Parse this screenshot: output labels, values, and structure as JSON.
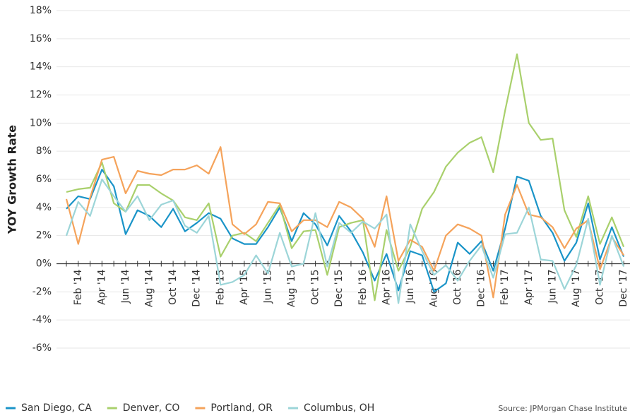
{
  "chart_data": {
    "type": "line",
    "y_label": "YOY Growth Rate",
    "source": "Source:  JPMorgan Chase Institute",
    "categories": [
      null,
      "Feb '14",
      null,
      "Apr '14",
      null,
      "Jun '14",
      null,
      "Aug '14",
      null,
      "Oct '14",
      null,
      "Dec '14",
      null,
      "Feb '15",
      null,
      "Apr '15",
      null,
      "Jun '15",
      null,
      "Aug '15",
      null,
      "Oct '15",
      null,
      "Dec '15",
      null,
      "Feb '16",
      null,
      "Apr '16",
      null,
      "Jun '16",
      null,
      "Aug '16",
      null,
      "Oct '16",
      null,
      "Dec '16",
      null,
      "Feb '17",
      null,
      "Apr '17",
      null,
      "Jun '17",
      null,
      "Aug '17",
      null,
      "Oct '17",
      null,
      "Dec '17"
    ],
    "series": [
      {
        "name": "San Diego, CA",
        "color": "#1a94c8",
        "values": [
          3.9,
          4.8,
          4.6,
          6.7,
          5.5,
          2.1,
          3.8,
          3.4,
          2.6,
          3.9,
          2.3,
          2.9,
          3.6,
          3.2,
          1.8,
          1.4,
          1.4,
          2.6,
          4.0,
          1.6,
          3.6,
          2.8,
          1.3,
          3.4,
          2.3,
          0.8,
          -1.2,
          0.7,
          -1.9,
          0.9,
          0.6,
          -2.0,
          -1.4,
          1.5,
          0.7,
          1.6,
          -0.5,
          2.5,
          6.2,
          5.9,
          3.4,
          2.2,
          0.2,
          1.5,
          4.3,
          0.3,
          2.6,
          0.5
        ]
      },
      {
        "name": "Denver, CO",
        "color": "#a9d06c",
        "values": [
          5.1,
          5.3,
          5.4,
          7.2,
          4.3,
          3.7,
          5.6,
          5.6,
          5.0,
          4.5,
          3.3,
          3.1,
          4.3,
          0.5,
          2.0,
          2.2,
          1.6,
          2.9,
          4.2,
          1.1,
          2.3,
          2.4,
          -0.8,
          2.6,
          2.9,
          3.1,
          -2.6,
          2.4,
          -0.5,
          1.2,
          3.9,
          5.1,
          6.9,
          7.9,
          8.6,
          9.0,
          6.5,
          10.9,
          14.9,
          10.0,
          8.8,
          8.9,
          3.8,
          1.9,
          4.8,
          1.4,
          3.3,
          1.2
        ]
      },
      {
        "name": "Portland, OR",
        "color": "#f5a35b",
        "values": [
          4.6,
          1.4,
          4.7,
          7.4,
          7.6,
          5.0,
          6.6,
          6.4,
          6.3,
          6.7,
          6.7,
          7.0,
          6.4,
          8.3,
          2.8,
          2.1,
          2.8,
          4.4,
          4.3,
          2.3,
          3.1,
          3.1,
          2.6,
          4.4,
          4.0,
          3.2,
          1.2,
          4.8,
          0.2,
          1.7,
          1.2,
          -0.5,
          2.0,
          2.8,
          2.5,
          2.0,
          -2.4,
          3.5,
          5.6,
          3.5,
          3.3,
          2.6,
          1.1,
          2.5,
          3.1,
          -0.4,
          1.9,
          0.6
        ]
      },
      {
        "name": "Columbus, OH",
        "color": "#9cd5d8",
        "values": [
          2.0,
          4.4,
          3.4,
          6.0,
          4.8,
          3.7,
          4.8,
          3.1,
          4.2,
          4.5,
          2.7,
          2.2,
          3.4,
          -1.5,
          -1.3,
          -0.8,
          0.6,
          -0.7,
          2.2,
          -0.2,
          0.0,
          3.6,
          -0.2,
          2.9,
          2.2,
          3.0,
          2.5,
          3.5,
          -2.8,
          2.8,
          0.9,
          -0.8,
          -0.1,
          -1.2,
          0.2,
          1.3,
          -1.0,
          2.1,
          2.2,
          4.0,
          0.3,
          0.2,
          -1.8,
          -0.1,
          3.2,
          -1.5,
          2.0,
          -0.2
        ]
      }
    ],
    "ylim": [
      -6,
      18
    ],
    "yticks": [
      {
        "value": -6,
        "label": "-6%"
      },
      {
        "value": -4,
        "label": "-4%"
      },
      {
        "value": -2,
        "label": "-2%"
      },
      {
        "value": 0,
        "label": "0%"
      },
      {
        "value": 2,
        "label": "2%"
      },
      {
        "value": 4,
        "label": "4%"
      },
      {
        "value": 6,
        "label": "6%"
      },
      {
        "value": 8,
        "label": "8%"
      },
      {
        "value": 10,
        "label": "10%"
      },
      {
        "value": 12,
        "label": "12%"
      },
      {
        "value": 14,
        "label": "14%"
      },
      {
        "value": 16,
        "label": "16%"
      },
      {
        "value": 18,
        "label": "18%"
      }
    ],
    "grid": true,
    "legend": "bottom"
  }
}
